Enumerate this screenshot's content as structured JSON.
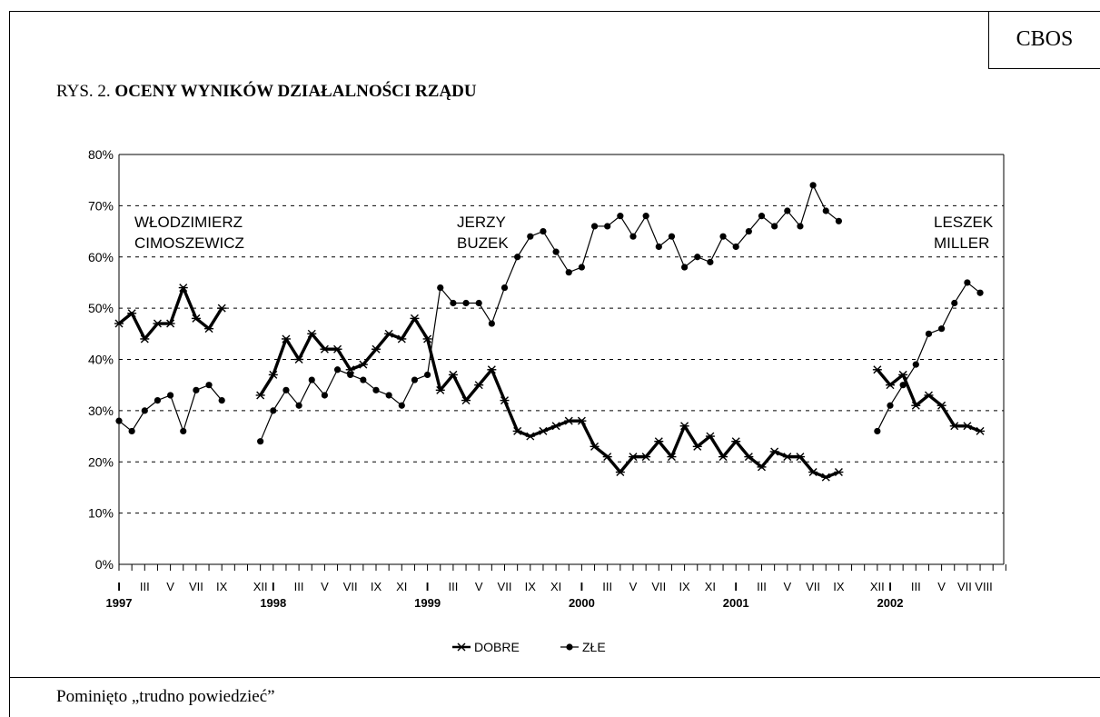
{
  "header": {
    "brand": "CBOS",
    "title_prefix": "RYS. 2.",
    "title_main": "OCENY WYNIKÓW DZIAŁALNOŚCI RZĄDU"
  },
  "footer": {
    "note": "Pominięto „trudno powiedzieć”"
  },
  "chart_data": {
    "type": "line",
    "y_unit": "%",
    "ylim": [
      0,
      80
    ],
    "yticks": [
      "0%",
      "10%",
      "20%",
      "30%",
      "40%",
      "50%",
      "60%",
      "70%",
      "80%"
    ],
    "grid": "horizontal dashed",
    "legend_position": "bottom-center",
    "month_labels": [
      "I",
      "III",
      "V",
      "VII",
      "IX",
      "XII",
      "I",
      "III",
      "V",
      "VII",
      "IX",
      "XI",
      "I",
      "III",
      "V",
      "VII",
      "IX",
      "XI",
      "I",
      "III",
      "V",
      "VII",
      "IX",
      "XI",
      "I",
      "III",
      "V",
      "VII",
      "IX",
      "XII",
      "I",
      "III",
      "V",
      "VII",
      "VIII"
    ],
    "year_labels": [
      "1997",
      "1998",
      "1999",
      "2000",
      "2001",
      "2002"
    ],
    "annotations": [
      {
        "lines": [
          "WŁODZIMIERZ",
          "CIMOSZEWICZ"
        ]
      },
      {
        "lines": [
          "JERZY",
          "BUZEK"
        ]
      },
      {
        "lines": [
          "LESZEK",
          "MILLER"
        ]
      }
    ],
    "series": [
      {
        "name": "DOBRE",
        "marker": "star",
        "segments": [
          {
            "points": [
              [
                "1997-01",
                47
              ],
              [
                "1997-02",
                49
              ],
              [
                "1997-03",
                44
              ],
              [
                "1997-04",
                47
              ],
              [
                "1997-05",
                47
              ],
              [
                "1997-06",
                54
              ],
              [
                "1997-07",
                48
              ],
              [
                "1997-08",
                46
              ],
              [
                "1997-09",
                50
              ]
            ]
          },
          {
            "points": [
              [
                "1997-12",
                33
              ],
              [
                "1998-01",
                37
              ],
              [
                "1998-02",
                44
              ],
              [
                "1998-03",
                40
              ],
              [
                "1998-04",
                45
              ],
              [
                "1998-05",
                42
              ],
              [
                "1998-06",
                42
              ],
              [
                "1998-07",
                38
              ],
              [
                "1998-08",
                39
              ],
              [
                "1998-09",
                42
              ],
              [
                "1998-10",
                45
              ],
              [
                "1998-11",
                44
              ],
              [
                "1998-12",
                48
              ],
              [
                "1999-01",
                44
              ],
              [
                "1999-02",
                34
              ],
              [
                "1999-03",
                37
              ],
              [
                "1999-04",
                32
              ],
              [
                "1999-05",
                35
              ],
              [
                "1999-06",
                38
              ],
              [
                "1999-07",
                32
              ],
              [
                "1999-08",
                26
              ],
              [
                "1999-09",
                25
              ],
              [
                "1999-10",
                26
              ],
              [
                "1999-11",
                27
              ],
              [
                "1999-12",
                28
              ],
              [
                "2000-01",
                28
              ],
              [
                "2000-02",
                23
              ],
              [
                "2000-03",
                21
              ],
              [
                "2000-04",
                18
              ],
              [
                "2000-05",
                21
              ],
              [
                "2000-06",
                21
              ],
              [
                "2000-07",
                24
              ],
              [
                "2000-08",
                21
              ],
              [
                "2000-09",
                27
              ],
              [
                "2000-10",
                23
              ],
              [
                "2000-11",
                25
              ],
              [
                "2000-12",
                21
              ],
              [
                "2001-01",
                24
              ],
              [
                "2001-02",
                21
              ],
              [
                "2001-03",
                19
              ],
              [
                "2001-04",
                22
              ],
              [
                "2001-05",
                21
              ],
              [
                "2001-06",
                21
              ],
              [
                "2001-07",
                18
              ],
              [
                "2001-08",
                17
              ],
              [
                "2001-09",
                18
              ]
            ]
          },
          {
            "points": [
              [
                "2001-12",
                38
              ],
              [
                "2002-01",
                35
              ],
              [
                "2002-02",
                37
              ],
              [
                "2002-03",
                31
              ],
              [
                "2002-04",
                33
              ],
              [
                "2002-05",
                31
              ],
              [
                "2002-06",
                27
              ],
              [
                "2002-07",
                27
              ],
              [
                "2002-08",
                26
              ]
            ]
          }
        ]
      },
      {
        "name": "ZŁE",
        "marker": "dot",
        "segments": [
          {
            "points": [
              [
                "1997-01",
                28
              ],
              [
                "1997-02",
                26
              ],
              [
                "1997-03",
                30
              ],
              [
                "1997-04",
                32
              ],
              [
                "1997-05",
                33
              ],
              [
                "1997-06",
                26
              ],
              [
                "1997-07",
                34
              ],
              [
                "1997-08",
                35
              ],
              [
                "1997-09",
                32
              ]
            ]
          },
          {
            "points": [
              [
                "1997-12",
                24
              ],
              [
                "1998-01",
                30
              ],
              [
                "1998-02",
                34
              ],
              [
                "1998-03",
                31
              ],
              [
                "1998-04",
                36
              ],
              [
                "1998-05",
                33
              ],
              [
                "1998-06",
                38
              ],
              [
                "1998-07",
                37
              ],
              [
                "1998-08",
                36
              ],
              [
                "1998-09",
                34
              ],
              [
                "1998-10",
                33
              ],
              [
                "1998-11",
                31
              ],
              [
                "1998-12",
                36
              ],
              [
                "1999-01",
                37
              ],
              [
                "1999-02",
                54
              ],
              [
                "1999-03",
                51
              ],
              [
                "1999-04",
                51
              ],
              [
                "1999-05",
                51
              ],
              [
                "1999-06",
                47
              ],
              [
                "1999-07",
                54
              ],
              [
                "1999-08",
                60
              ],
              [
                "1999-09",
                64
              ],
              [
                "1999-10",
                65
              ],
              [
                "1999-11",
                61
              ],
              [
                "1999-12",
                57
              ],
              [
                "2000-01",
                58
              ],
              [
                "2000-02",
                66
              ],
              [
                "2000-03",
                66
              ],
              [
                "2000-04",
                68
              ],
              [
                "2000-05",
                64
              ],
              [
                "2000-06",
                68
              ],
              [
                "2000-07",
                62
              ],
              [
                "2000-08",
                64
              ],
              [
                "2000-09",
                58
              ],
              [
                "2000-10",
                60
              ],
              [
                "2000-11",
                59
              ],
              [
                "2000-12",
                64
              ],
              [
                "2001-01",
                62
              ],
              [
                "2001-02",
                65
              ],
              [
                "2001-03",
                68
              ],
              [
                "2001-04",
                66
              ],
              [
                "2001-05",
                69
              ],
              [
                "2001-06",
                66
              ],
              [
                "2001-07",
                74
              ],
              [
                "2001-08",
                69
              ],
              [
                "2001-09",
                67
              ]
            ]
          },
          {
            "points": [
              [
                "2001-12",
                26
              ],
              [
                "2002-01",
                31
              ],
              [
                "2002-02",
                35
              ],
              [
                "2002-03",
                39
              ],
              [
                "2002-04",
                45
              ],
              [
                "2002-05",
                46
              ],
              [
                "2002-06",
                51
              ],
              [
                "2002-07",
                55
              ],
              [
                "2002-08",
                53
              ]
            ]
          }
        ]
      }
    ]
  }
}
